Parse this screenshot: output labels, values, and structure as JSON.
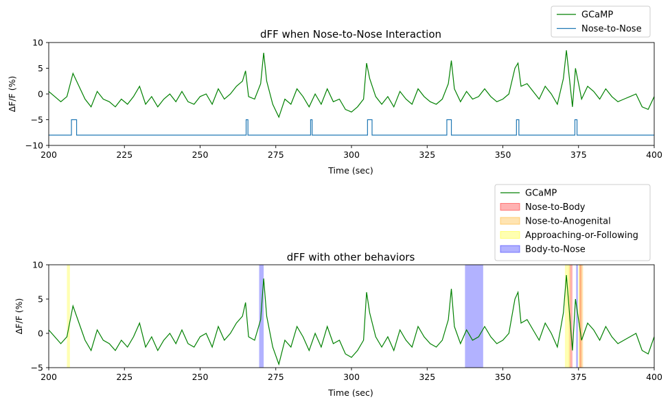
{
  "chart_data": [
    {
      "type": "line",
      "title": "dFF when Nose-to-Nose Interaction",
      "xlabel": "Time (sec)",
      "ylabel": "ΔF/F (%)",
      "xlim": [
        200,
        400
      ],
      "ylim": [
        -10,
        10
      ],
      "xticks": [
        "200",
        "225",
        "250",
        "275",
        "300",
        "325",
        "350",
        "375",
        "400"
      ],
      "yticks": [
        "10",
        "5",
        "0",
        "−5",
        "−10"
      ],
      "legend_position": "upper-right-outside",
      "series": [
        {
          "name": "GCaMP",
          "color": "#008000",
          "x": [
            200,
            202,
            204,
            206,
            208,
            210,
            212,
            214,
            216,
            218,
            220,
            222,
            224,
            226,
            228,
            230,
            232,
            234,
            236,
            238,
            240,
            242,
            244,
            246,
            248,
            250,
            252,
            254,
            256,
            258,
            260,
            262,
            264,
            265,
            266,
            268,
            270,
            271,
            272,
            274,
            276,
            278,
            280,
            282,
            284,
            286,
            288,
            290,
            292,
            294,
            296,
            298,
            300,
            302,
            304,
            305,
            306,
            308,
            310,
            312,
            314,
            316,
            318,
            320,
            322,
            324,
            326,
            328,
            330,
            332,
            333,
            334,
            336,
            338,
            340,
            342,
            344,
            346,
            348,
            350,
            352,
            354,
            355,
            356,
            358,
            360,
            362,
            364,
            366,
            368,
            370,
            371,
            372,
            373,
            374,
            375,
            376,
            378,
            380,
            382,
            384,
            386,
            388,
            390,
            392,
            394,
            396,
            398,
            400
          ],
          "y": [
            0.5,
            -0.5,
            -1.5,
            -0.5,
            4.0,
            1.5,
            -1.0,
            -2.5,
            0.5,
            -1.0,
            -1.5,
            -2.5,
            -1.0,
            -2.0,
            -0.5,
            1.5,
            -2.0,
            -0.5,
            -2.5,
            -1.0,
            0.0,
            -1.5,
            0.5,
            -1.5,
            -2.0,
            -0.5,
            0.0,
            -2.0,
            1.0,
            -1.0,
            0.0,
            1.5,
            2.5,
            4.5,
            -0.5,
            -1.0,
            2.0,
            8.0,
            2.5,
            -2.0,
            -4.5,
            -1.0,
            -2.0,
            1.0,
            -0.5,
            -2.5,
            0.0,
            -2.0,
            1.0,
            -1.5,
            -1.0,
            -3.0,
            -3.5,
            -2.5,
            -1.0,
            6.0,
            3.0,
            -0.5,
            -2.0,
            -0.5,
            -2.5,
            0.5,
            -1.0,
            -2.0,
            1.0,
            -0.5,
            -1.5,
            -2.0,
            -1.0,
            2.0,
            6.5,
            1.0,
            -1.5,
            0.5,
            -1.0,
            -0.5,
            1.0,
            -0.5,
            -1.5,
            -1.0,
            0.0,
            5.0,
            6.0,
            1.5,
            2.0,
            0.5,
            -1.0,
            1.5,
            0.0,
            -2.0,
            3.0,
            8.5,
            3.0,
            -2.5,
            5.0,
            2.0,
            -1.0,
            1.5,
            0.5,
            -1.0,
            1.0,
            -0.5,
            -1.5,
            -1.0,
            -0.5,
            0.0,
            -2.5,
            -3.0,
            -0.5
          ]
        },
        {
          "name": "Nose-to-Nose",
          "color": "#1f77b4",
          "step_intervals": [
            [
              207.5,
              209.2
            ],
            [
              265.2,
              265.8
            ],
            [
              286.5,
              287.0
            ],
            [
              305.3,
              306.8
            ],
            [
              331.5,
              333.0
            ],
            [
              354.5,
              355.3
            ],
            [
              373.8,
              374.5
            ]
          ],
          "baseline": -8,
          "high": -5
        }
      ]
    },
    {
      "type": "line",
      "title": "dFF with other behaviors",
      "xlabel": "Time (sec)",
      "ylabel": "ΔF/F (%)",
      "xlim": [
        200,
        400
      ],
      "ylim": [
        -5,
        10
      ],
      "xticks": [
        "200",
        "225",
        "250",
        "275",
        "300",
        "325",
        "350",
        "375",
        "400"
      ],
      "yticks": [
        "10",
        "5",
        "0",
        "−5"
      ],
      "legend_position": "upper-right-outside",
      "legend": [
        "GCaMP",
        "Nose-to-Body",
        "Nose-to-Anogenital",
        "Approaching-or-Following",
        "Body-to-Nose"
      ],
      "trace_color": "#008000",
      "spans": [
        {
          "name": "Approaching-or-Following",
          "color": "#ffff00",
          "alpha": 0.3,
          "intervals": [
            [
              206.0,
              207.0
            ],
            [
              370.5,
              372.0
            ],
            [
              375.0,
              376.0
            ]
          ]
        },
        {
          "name": "Body-to-Nose",
          "color": "#0000ff",
          "alpha": 0.3,
          "intervals": [
            [
              269.5,
              271.0
            ],
            [
              337.5,
              343.5
            ],
            [
              374.2,
              374.8
            ]
          ]
        },
        {
          "name": "Nose-to-Body",
          "color": "#ff0000",
          "alpha": 0.3,
          "intervals": [
            [
              372.2,
              373.0
            ],
            [
              375.3,
              376.0
            ]
          ]
        },
        {
          "name": "Nose-to-Anogenital",
          "color": "#ffa500",
          "alpha": 0.3,
          "intervals": [
            [
              371.8,
              372.4
            ],
            [
              376.0,
              376.5
            ]
          ]
        }
      ]
    }
  ]
}
